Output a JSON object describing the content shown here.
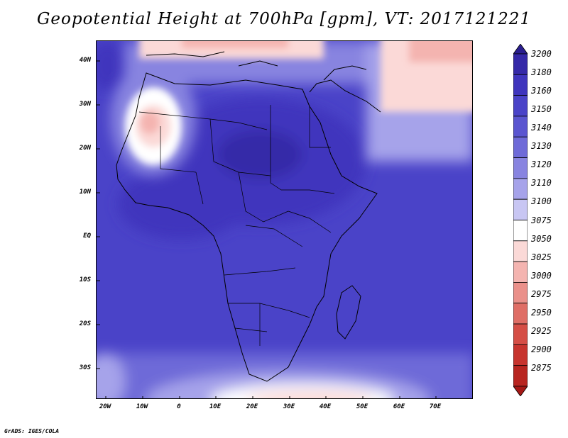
{
  "title": "Geopotential Height at 700hPa [gpm], VT: 2017121221",
  "credit": "GrADS: IGES/COLA",
  "lat_labels": [
    "40N",
    "30N",
    "20N",
    "10N",
    "EQ",
    "10S",
    "20S",
    "30S"
  ],
  "lon_labels": [
    "20W",
    "10W",
    "0",
    "10E",
    "20E",
    "30E",
    "40E",
    "50E",
    "60E",
    "70E"
  ],
  "colorbar": {
    "levels": [
      "3200",
      "3180",
      "3160",
      "3150",
      "3140",
      "3130",
      "3120",
      "3110",
      "3100",
      "3075",
      "3050",
      "3025",
      "3000",
      "2975",
      "2950",
      "2925",
      "2900",
      "2875"
    ],
    "colors": [
      "#2a1e8f",
      "#3529a8",
      "#3f35bd",
      "#4a43c8",
      "#5a55d0",
      "#6e6ad8",
      "#8884e0",
      "#a6a3ea",
      "#c8c6f3",
      "#ffffff",
      "#fbd9d7",
      "#f4b4b0",
      "#ea908a",
      "#df6e66",
      "#d54e46",
      "#c7342e",
      "#b82520",
      "#a51816"
    ]
  },
  "map": {
    "field": "Geopotential Height at 700hPa",
    "region": "Africa",
    "lat_range": [
      "35S",
      "45N"
    ],
    "lon_range": [
      "22W",
      "80E"
    ]
  }
}
